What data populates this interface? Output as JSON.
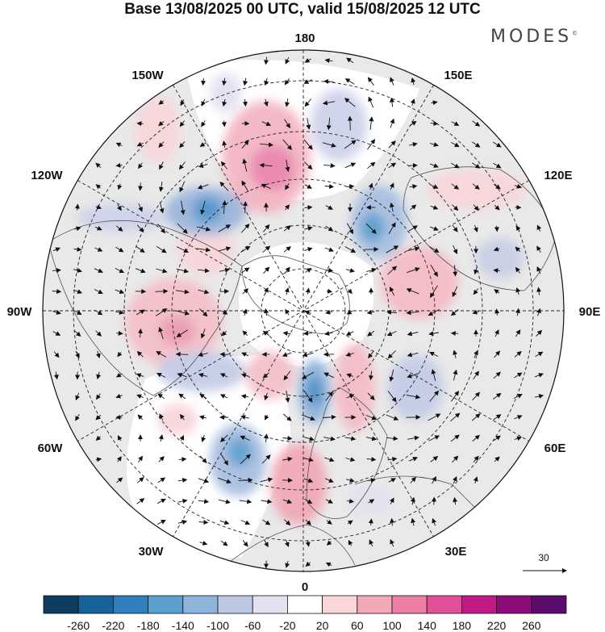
{
  "header": {
    "title": "Base 13/08/2025 00 UTC, valid 15/08/2025 12 UTC",
    "brand": "MODES",
    "brand_mark": "©"
  },
  "map": {
    "projection": "polar-stereographic-north",
    "longitude_labels": {
      "lon_180": "180",
      "lon_150w": "150W",
      "lon_150e": "150E",
      "lon_120w": "120W",
      "lon_120e": "120E",
      "lon_90w": "90W",
      "lon_90e": "90E",
      "lon_60w": "60W",
      "lon_60e": "60E",
      "lon_30w": "30W",
      "lon_30e": "30E",
      "lon_0": "0"
    },
    "vector_scale_label": "30",
    "colors": {
      "ocean_land_background": "#e8e8e8",
      "coastline": "#555555",
      "grid": "#222222",
      "arrow": "#111111"
    }
  },
  "colorbar": {
    "tick_labels": [
      "-260",
      "-220",
      "-180",
      "-140",
      "-100",
      "-60",
      "-20",
      "20",
      "60",
      "100",
      "140",
      "180",
      "220",
      "260"
    ],
    "colors": [
      "#0c3c5f",
      "#18629a",
      "#2f7fbd",
      "#5a9fd0",
      "#8fb4dc",
      "#bdc6e3",
      "#e3e1ef",
      "#ffffff",
      "#f8d6da",
      "#f1a9b6",
      "#ec7fa3",
      "#e04f98",
      "#c01a86",
      "#8e0c7a",
      "#5a0b6c"
    ]
  }
}
